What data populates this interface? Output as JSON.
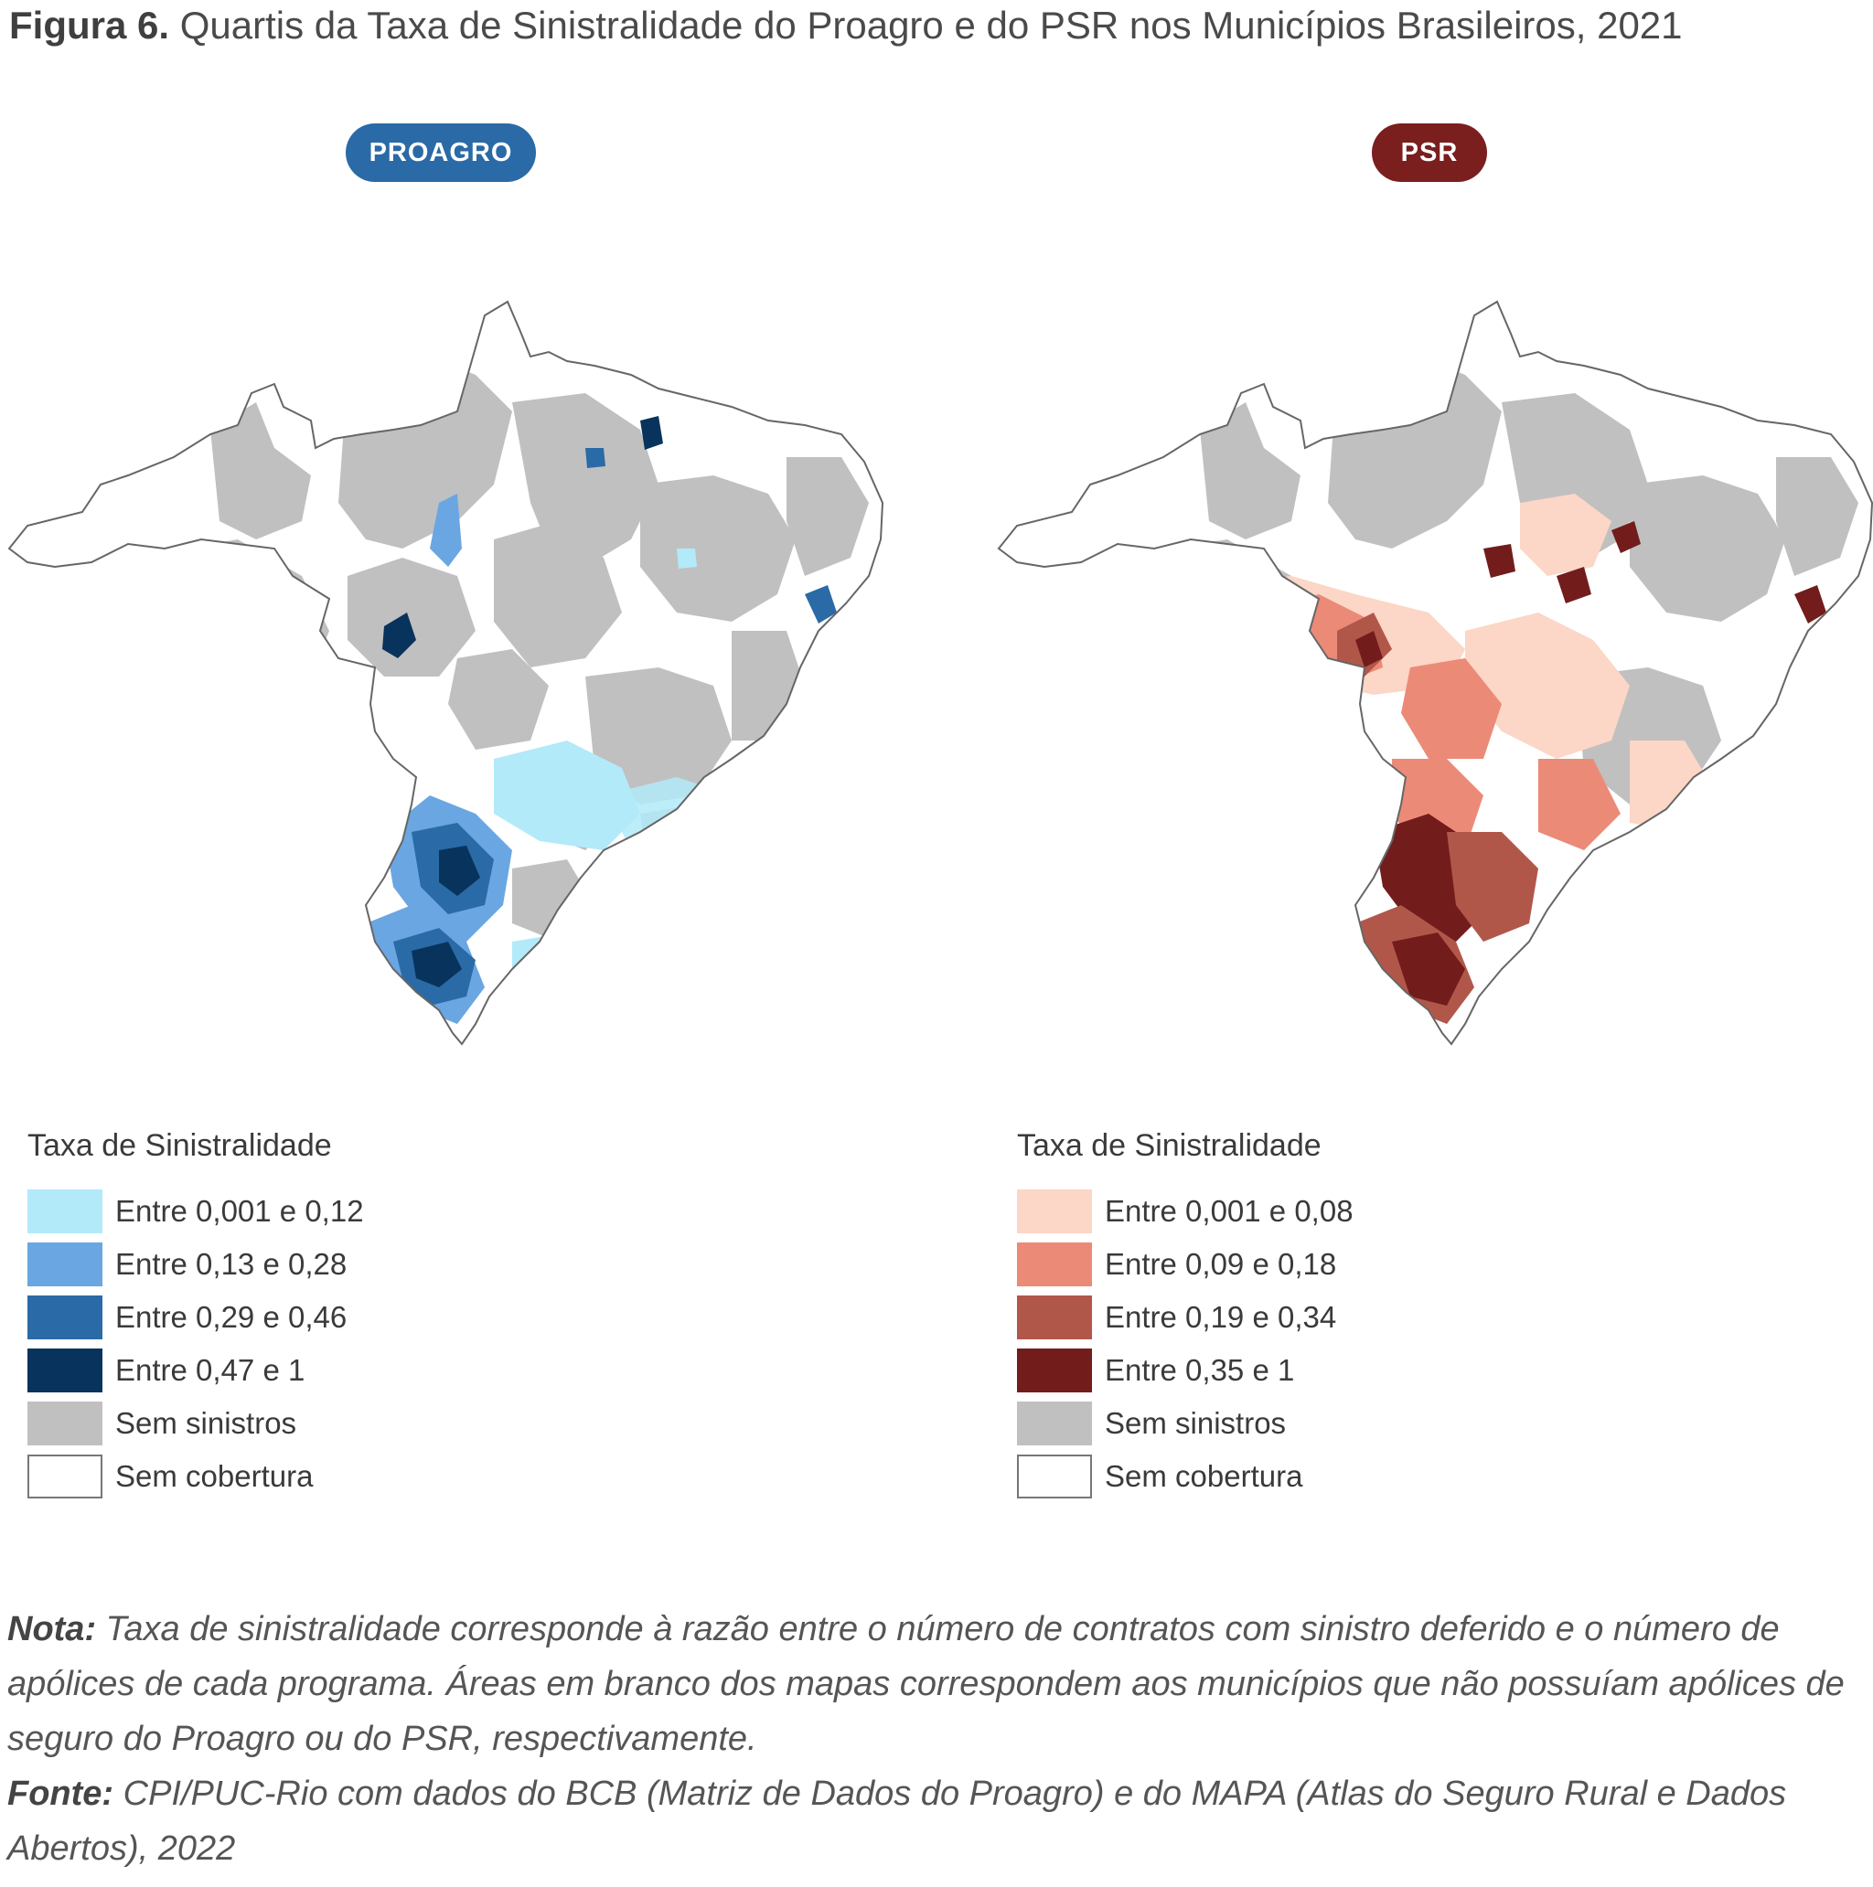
{
  "figure": {
    "label": "Figura 6.",
    "title": "Quartis da Taxa de Sinistralidade do Proagro e do PSR nos Municípios Brasileiros, 2021"
  },
  "maps": [
    {
      "badge": "PROAGRO",
      "badge_color": "#2a6aa6",
      "legend_title": "Taxa de Sinistralidade",
      "classes": [
        {
          "label": "Entre 0,001 e 0,12",
          "color": "#b3eaf9"
        },
        {
          "label": "Entre 0,13 e 0,28",
          "color": "#6aa6e2"
        },
        {
          "label": "Entre 0,29 e 0,46",
          "color": "#2a6aa6"
        },
        {
          "label": "Entre 0,47 e 1",
          "color": "#08335c"
        },
        {
          "label": "Sem sinistros",
          "color": "#c0c0c0"
        },
        {
          "label": "Sem cobertura",
          "color": "#ffffff"
        }
      ]
    },
    {
      "badge": "PSR",
      "badge_color": "#7a1e1e",
      "legend_title": "Taxa de Sinistralidade",
      "classes": [
        {
          "label": "Entre 0,001 e 0,08",
          "color": "#fcd6c6"
        },
        {
          "label": "Entre 0,09 e 0,18",
          "color": "#ec8a78"
        },
        {
          "label": "Entre 0,19 e 0,34",
          "color": "#b1574a"
        },
        {
          "label": "Entre 0,35 e 1",
          "color": "#731c1c"
        },
        {
          "label": "Sem sinistros",
          "color": "#c0c0c0"
        },
        {
          "label": "Sem cobertura",
          "color": "#ffffff"
        }
      ]
    }
  ],
  "notes": {
    "nota_label": "Nota:",
    "nota_text": "Taxa de sinistralidade corresponde à razão entre o número de contratos com sinistro deferido e o número de apólices de cada programa. Áreas em branco dos mapas correspondem aos municípios que não possuíam apólices de seguro do Proagro ou do PSR, respectivamente.",
    "fonte_label": "Fonte:",
    "fonte_text": "CPI/PUC-Rio com dados do BCB (Matriz de Dados do Proagro) e do MAPA (Atlas do Seguro Rural e Dados Abertos), 2022"
  }
}
